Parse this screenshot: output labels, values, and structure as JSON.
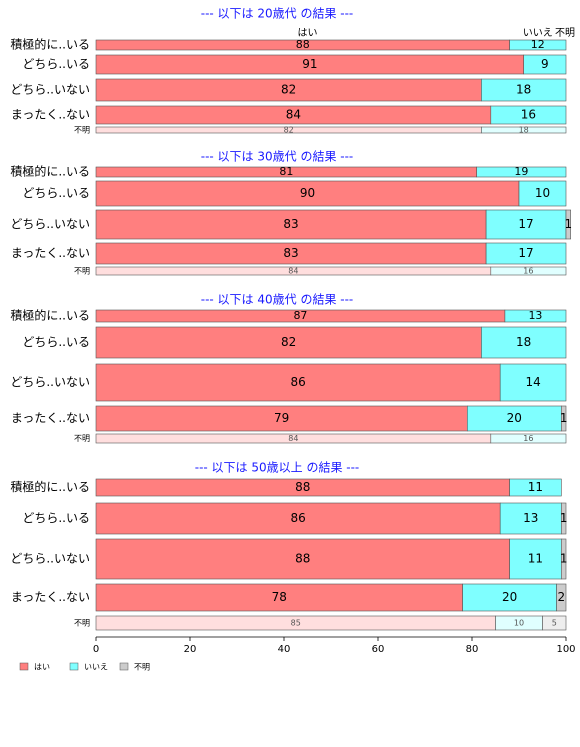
{
  "chart_data": {
    "type": "bar",
    "orientation": "horizontal",
    "stacked": true,
    "xlim": [
      0,
      100
    ],
    "x_ticks": [
      0,
      20,
      40,
      60,
      80,
      100
    ],
    "colors": {
      "はい": "#ff7f7f",
      "いいえ": "#7fffff",
      "不明": "#cccccc"
    },
    "legend": {
      "position": "bottom-left",
      "items": [
        {
          "label": "はい",
          "color": "#ff7f7f"
        },
        {
          "label": "いいえ",
          "color": "#7fffff"
        },
        {
          "label": "不明",
          "color": "#cccccc"
        }
      ]
    },
    "column_headers": {
      "yes": "はい",
      "no": "いいえ",
      "unknown": "不明"
    },
    "panels": [
      {
        "title": "--- 以下は 20歳代 の結果 ---",
        "rows": [
          {
            "label": "積極的に..いる",
            "values": [
              88,
              12,
              0
            ]
          },
          {
            "label": "どちら..いる",
            "values": [
              91,
              9,
              0
            ]
          },
          {
            "label": "どちら..いない",
            "values": [
              82,
              18,
              0
            ]
          },
          {
            "label": "まったく..ない",
            "values": [
              84,
              16,
              0
            ]
          },
          {
            "label": "不明",
            "values": [
              82,
              18,
              0
            ]
          }
        ]
      },
      {
        "title": "--- 以下は 30歳代 の結果 ---",
        "rows": [
          {
            "label": "積極的に..いる",
            "values": [
              81,
              19,
              0
            ]
          },
          {
            "label": "どちら..いる",
            "values": [
              90,
              10,
              0
            ]
          },
          {
            "label": "どちら..いない",
            "values": [
              83,
              17,
              1
            ]
          },
          {
            "label": "まったく..ない",
            "values": [
              83,
              17,
              0
            ]
          },
          {
            "label": "不明",
            "values": [
              84,
              16,
              0
            ]
          }
        ]
      },
      {
        "title": "--- 以下は 40歳代 の結果 ---",
        "rows": [
          {
            "label": "積極的に..いる",
            "values": [
              87,
              13,
              0
            ]
          },
          {
            "label": "どちら..いる",
            "values": [
              82,
              18,
              0
            ]
          },
          {
            "label": "どちら..いない",
            "values": [
              86,
              14,
              0
            ]
          },
          {
            "label": "まったく..ない",
            "values": [
              79,
              20,
              1
            ]
          },
          {
            "label": "不明",
            "values": [
              84,
              16,
              0
            ]
          }
        ]
      },
      {
        "title": "--- 以下は 50歳以上 の結果 ---",
        "rows": [
          {
            "label": "積極的に..いる",
            "values": [
              88,
              11,
              0
            ]
          },
          {
            "label": "どちら..いる",
            "values": [
              86,
              13,
              1
            ]
          },
          {
            "label": "どちら..いない",
            "values": [
              88,
              11,
              1
            ]
          },
          {
            "label": "まったく..ない",
            "values": [
              78,
              20,
              2
            ]
          },
          {
            "label": "不明",
            "values": [
              85,
              10,
              5
            ]
          }
        ]
      }
    ]
  }
}
